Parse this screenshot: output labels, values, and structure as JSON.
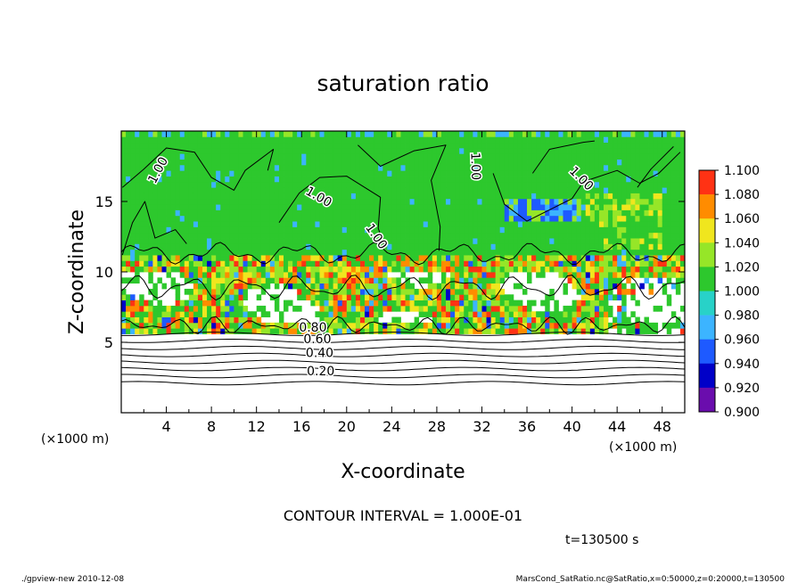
{
  "chart_data": {
    "type": "heatmap",
    "title": "saturation ratio",
    "xlabel": "X-coordinate",
    "ylabel": "Z-coordinate",
    "x_unit_left": "(×1000 m)",
    "x_unit_right": "(×1000 m)",
    "xlim": [
      0,
      50
    ],
    "ylim": [
      0,
      20
    ],
    "x_ticks": [
      4,
      8,
      12,
      16,
      20,
      24,
      28,
      32,
      36,
      40,
      44,
      48
    ],
    "y_ticks": [
      5,
      10,
      15
    ],
    "colorbar": {
      "levels": [
        "0.900",
        "0.920",
        "0.940",
        "0.960",
        "0.980",
        "1.000",
        "1.020",
        "1.040",
        "1.060",
        "1.080",
        "1.100"
      ],
      "colors": [
        "#6a0dad",
        "#0000c8",
        "#1e5aff",
        "#3cb4ff",
        "#28d2c8",
        "#2dc82d",
        "#96e628",
        "#f0e61e",
        "#ff8c00",
        "#ff3214",
        "#ff9696"
      ]
    },
    "contour_labels": [
      {
        "text": "1.00",
        "x": 3.3,
        "z": 17.2,
        "rot": -62
      },
      {
        "text": "1.00",
        "x": 17.5,
        "z": 15.3,
        "rot": 30
      },
      {
        "text": "1.00",
        "x": 22.6,
        "z": 12.5,
        "rot": 55
      },
      {
        "text": "1.00",
        "x": 31.4,
        "z": 17.5,
        "rot": 88
      },
      {
        "text": "1.00",
        "x": 40.8,
        "z": 16.6,
        "rot": 45
      },
      {
        "text": "0.80",
        "x": 17.0,
        "z": 6.0,
        "rot": 0
      },
      {
        "text": "0.60",
        "x": 17.4,
        "z": 5.2,
        "rot": 0
      },
      {
        "text": "0.40",
        "x": 17.6,
        "z": 4.2,
        "rot": 0
      },
      {
        "text": "0.20",
        "x": 17.7,
        "z": 2.9,
        "rot": 0
      }
    ],
    "contour_levels_lower": [
      0.2,
      0.3,
      0.4,
      0.5,
      0.6,
      0.7,
      0.8,
      0.9
    ]
  },
  "contour_interval": "CONTOUR INTERVAL = 1.000E-01",
  "time_label": "t=130500 s",
  "footer_left": "./gpview-new  2010-12-08",
  "footer_right": "MarsCond_SatRatio.nc@SatRatio,x=0:50000,z=0:20000,t=130500"
}
